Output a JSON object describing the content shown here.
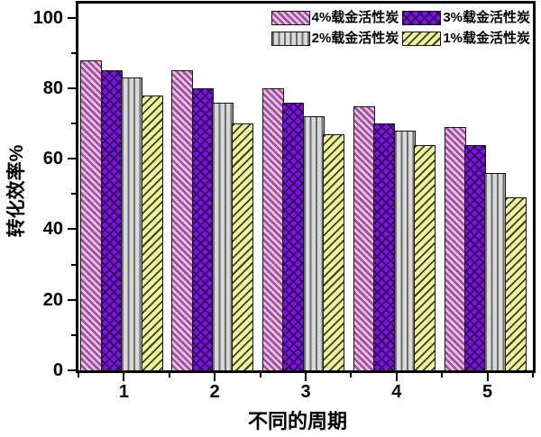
{
  "chart_data": {
    "type": "bar",
    "title": "",
    "xlabel": "不同的周期",
    "ylabel": "转化效率%",
    "categories": [
      "1",
      "2",
      "3",
      "4",
      "5"
    ],
    "series": [
      {
        "name": "4%载金活性炭",
        "pattern": "diagonal-down-hatch",
        "base_color": "#e9c2e4",
        "line_color": "#a0509c",
        "values": [
          88,
          85,
          80,
          75,
          69
        ]
      },
      {
        "name": "3%载金活性炭",
        "pattern": "diamond-crosshatch",
        "base_color": "#7b12dd",
        "line_color": "#330560",
        "values": [
          85,
          80,
          76,
          70,
          64
        ]
      },
      {
        "name": "2%载金活性炭",
        "pattern": "vertical-lines",
        "base_color": "#d9d9d9",
        "line_color": "#6f6f6f",
        "values": [
          83,
          76,
          72,
          68,
          56
        ]
      },
      {
        "name": "1%载金活性炭",
        "pattern": "diagonal-up-hatch",
        "base_color": "#eef39d",
        "line_color": "#3c3c16",
        "values": [
          78,
          70,
          67,
          64,
          49
        ]
      }
    ],
    "yticks": [
      0,
      20,
      40,
      60,
      80,
      100
    ],
    "yticks_minor": [
      10,
      30,
      50,
      70,
      90
    ],
    "ylim": [
      0,
      104
    ],
    "grid": false,
    "legend_position": "top-right-inside, 2 columns x 2 rows"
  }
}
